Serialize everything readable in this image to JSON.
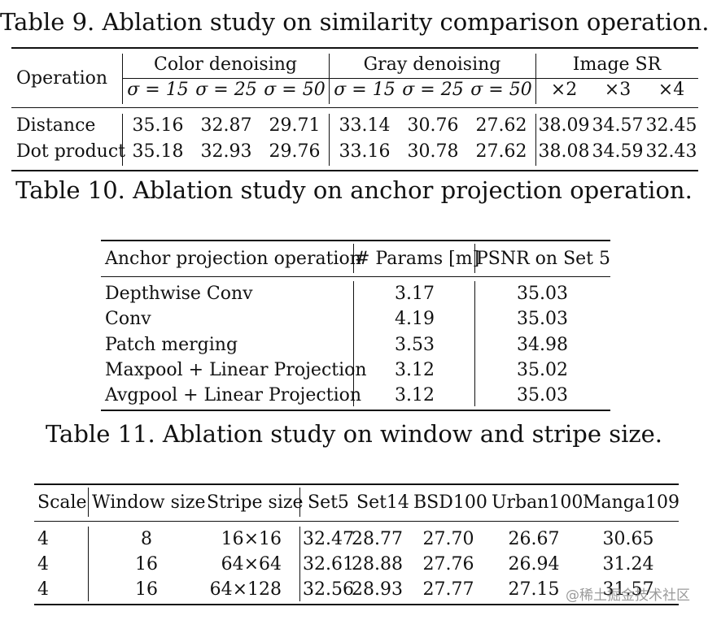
{
  "table9": {
    "caption": "Table 9. Ablation study on similarity comparison operation.",
    "header_op": "Operation",
    "groups": [
      "Color denoising",
      "Gray denoising",
      "Image SR"
    ],
    "subheaders": [
      "σ = 15",
      "σ = 25",
      "σ = 50",
      "σ = 15",
      "σ = 25",
      "σ = 50",
      "×2",
      "×3",
      "×4"
    ],
    "rows": [
      {
        "label": "Distance",
        "values": [
          "35.16",
          "32.87",
          "29.71",
          "33.14",
          "30.76",
          "27.62",
          "38.09",
          "34.57",
          "32.45"
        ]
      },
      {
        "label": "Dot product",
        "values": [
          "35.18",
          "32.93",
          "29.76",
          "33.16",
          "30.78",
          "27.62",
          "38.08",
          "34.59",
          "32.43"
        ]
      }
    ]
  },
  "table10": {
    "caption": "Table 10. Ablation study on anchor projection operation.",
    "headers": [
      "Anchor projection operation",
      "# Params [m]",
      "PSNR on Set 5"
    ],
    "rows": [
      {
        "name": "Depthwise Conv",
        "params": "3.17",
        "psnr": "35.03"
      },
      {
        "name": "Conv",
        "params": "4.19",
        "psnr": "35.03"
      },
      {
        "name": "Patch merging",
        "params": "3.53",
        "psnr": "34.98"
      },
      {
        "name": "Maxpool + Linear Projection",
        "params": "3.12",
        "psnr": "35.02"
      },
      {
        "name": "Avgpool + Linear Projection",
        "params": "3.12",
        "psnr": "35.03"
      }
    ]
  },
  "table11": {
    "caption": "Table 11. Ablation study on window and stripe size.",
    "headers": [
      "Scale",
      "Window size",
      "Stripe size",
      "Set5",
      "Set14",
      "BSD100",
      "Urban100",
      "Manga109"
    ],
    "rows": [
      {
        "scale": "4",
        "window": "8",
        "stripe": "16×16",
        "set5": "32.47",
        "set14": "28.77",
        "bsd100": "27.70",
        "urban100": "26.67",
        "manga109": "30.65"
      },
      {
        "scale": "4",
        "window": "16",
        "stripe": "64×64",
        "set5": "32.61",
        "set14": "28.88",
        "bsd100": "27.76",
        "urban100": "26.94",
        "manga109": "31.24"
      },
      {
        "scale": "4",
        "window": "16",
        "stripe": "64×128",
        "set5": "32.56",
        "set14": "28.93",
        "bsd100": "27.77",
        "urban100": "27.15",
        "manga109": "31.57"
      }
    ]
  },
  "watermark": "@稀土掘金技术社区"
}
